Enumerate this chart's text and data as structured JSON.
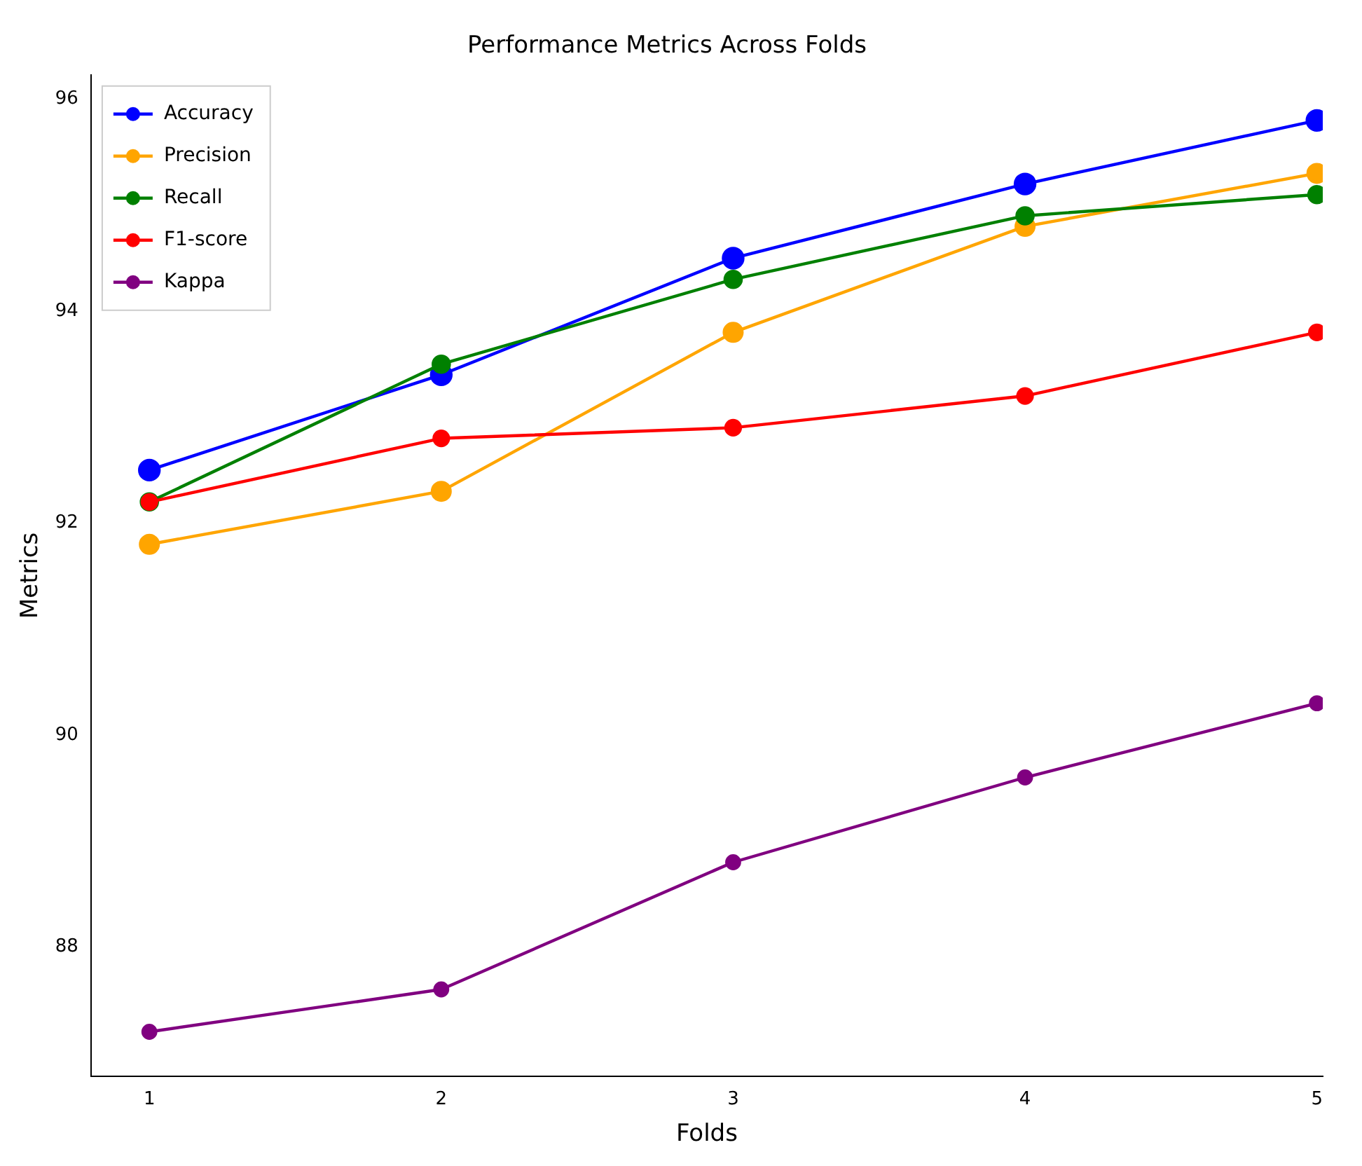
{
  "chart_data": {
    "type": "line",
    "title": "Performance Metrics Across Folds",
    "xlabel": "Folds",
    "ylabel": "Metrics",
    "x": [
      1,
      2,
      3,
      4,
      5
    ],
    "xlim": [
      0.8,
      5.02
    ],
    "xticks": [
      1,
      2,
      3,
      4,
      5
    ],
    "ylim": [
      86.78,
      96.23
    ],
    "yticks": [
      88,
      90,
      92,
      94,
      96
    ],
    "grid": false,
    "legend": "top left",
    "marker": "circle",
    "line_style": "solid",
    "series": [
      {
        "name": "Accuracy",
        "color": "#0000ff",
        "values": [
          92.5,
          93.4,
          94.5,
          95.2,
          95.8
        ]
      },
      {
        "name": "Precision",
        "color": "#ffa500",
        "values": [
          91.8,
          92.3,
          93.8,
          94.8,
          95.3
        ]
      },
      {
        "name": "Recall",
        "color": "#008000",
        "values": [
          92.2,
          93.5,
          94.3,
          94.9,
          95.1
        ]
      },
      {
        "name": "F1-score",
        "color": "#ff0000",
        "values": [
          92.2,
          92.8,
          92.9,
          93.2,
          93.8
        ]
      },
      {
        "name": "Kappa",
        "color": "#800080",
        "values": [
          87.2,
          87.6,
          88.8,
          89.6,
          90.3
        ]
      }
    ]
  }
}
